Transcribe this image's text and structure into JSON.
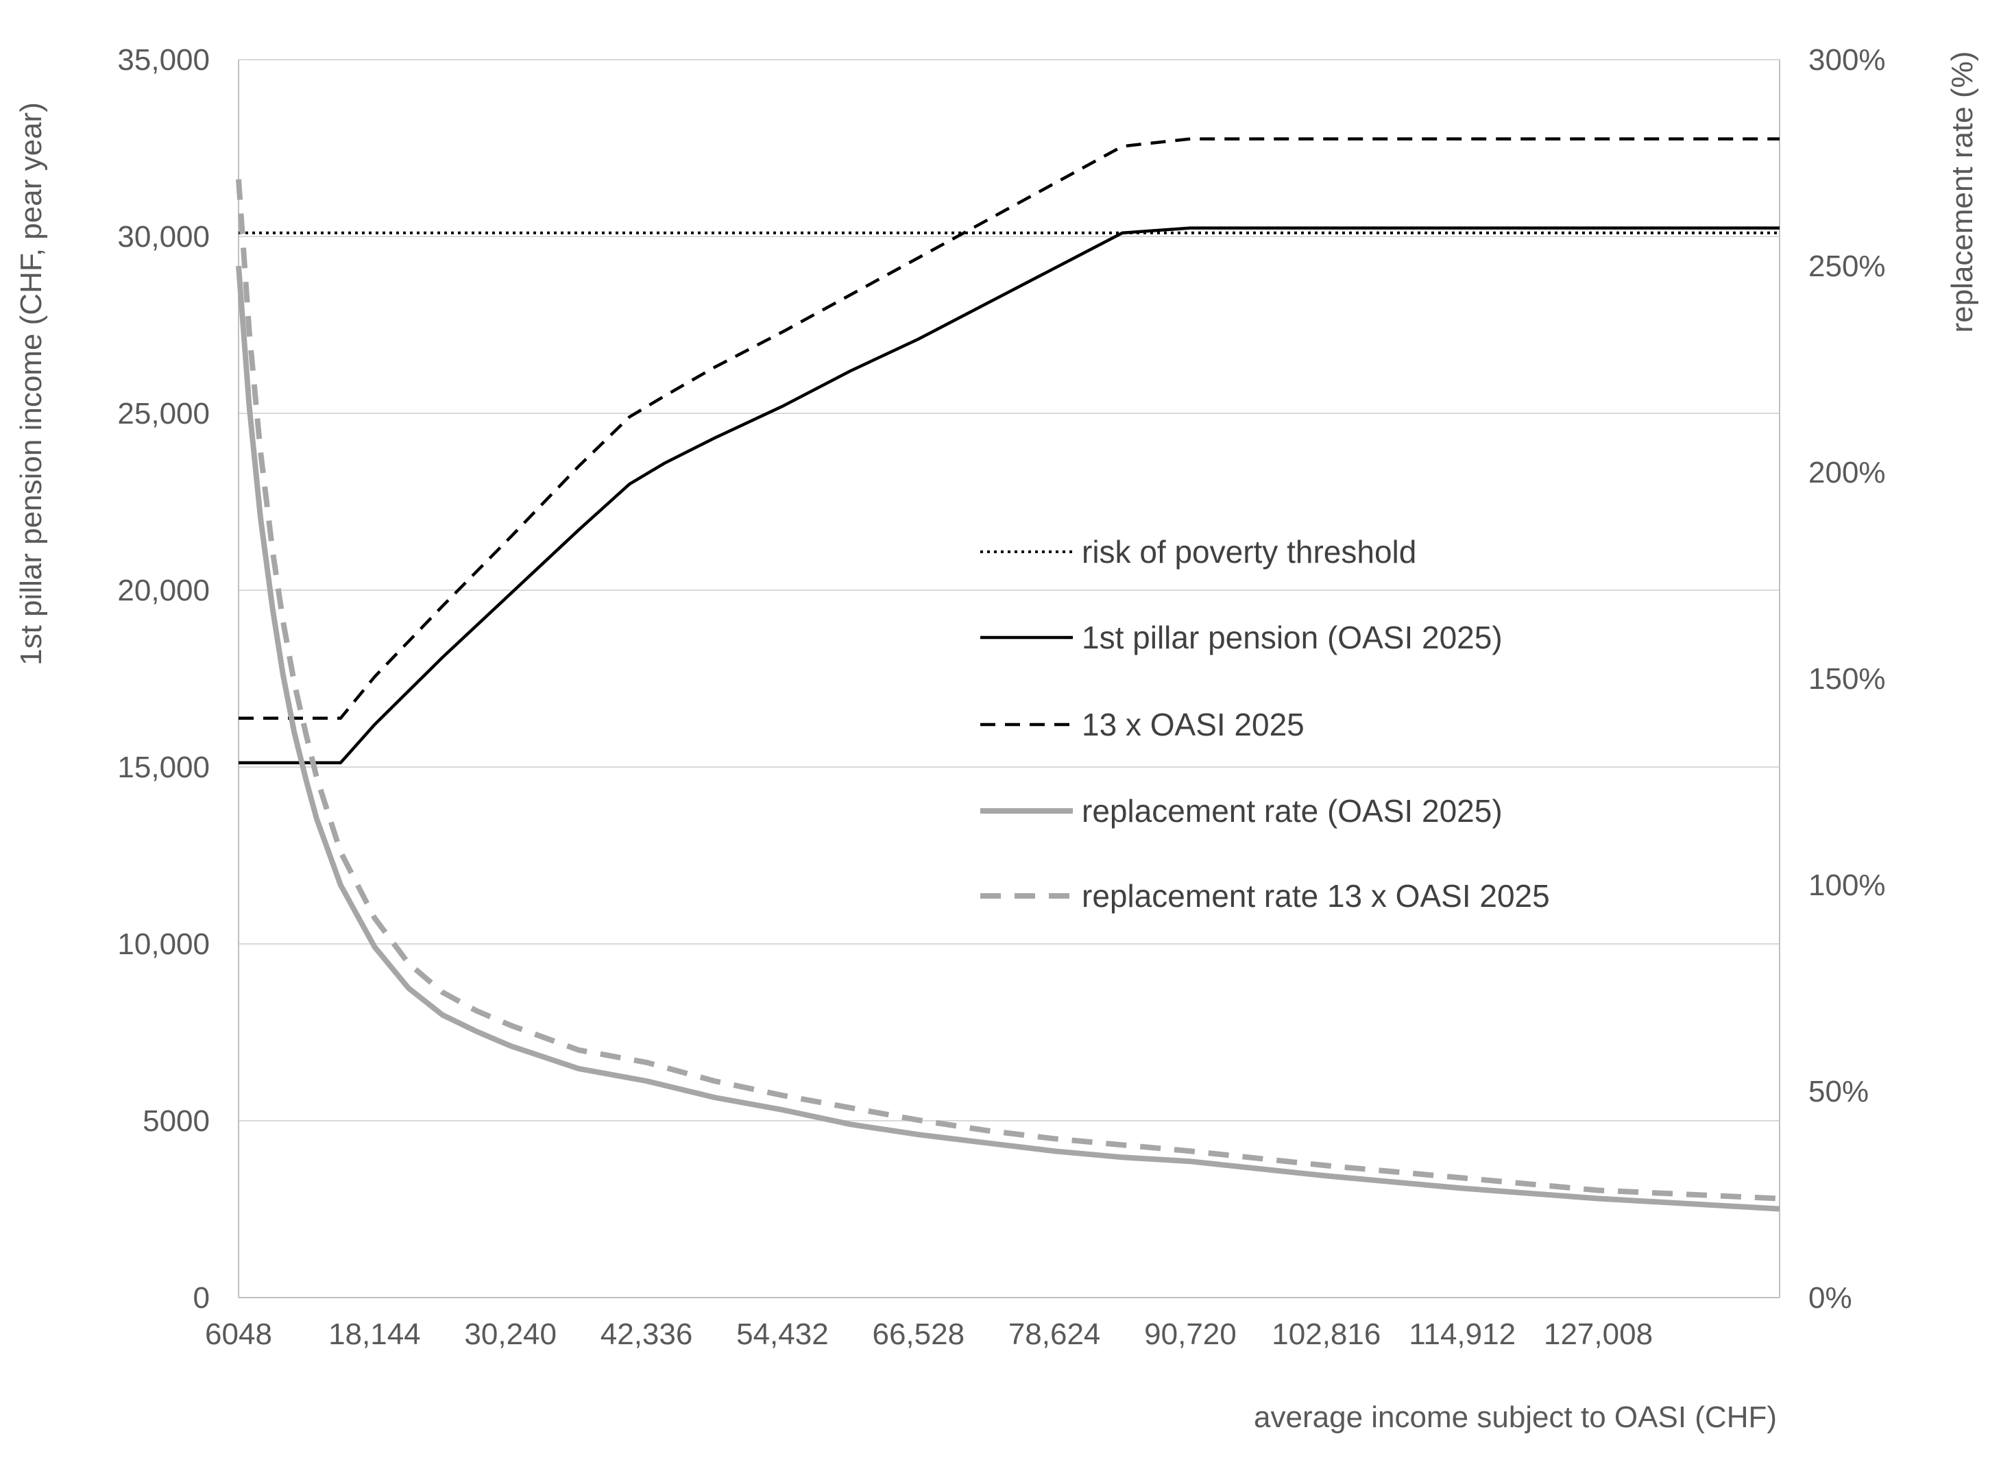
{
  "chart_data": {
    "type": "line",
    "title": "",
    "xlabel": "average income subject to OASI (CHF)",
    "ylabel": "1st pillar pension income (CHF, pear year)",
    "y2label": "replacement rate (%)",
    "xlim": [
      6048,
      143136
    ],
    "ylim": [
      0,
      35000
    ],
    "y2lim": [
      0,
      300
    ],
    "x_ticks": [
      6048,
      18144,
      30240,
      42336,
      54432,
      66528,
      78624,
      90720,
      102816,
      114912,
      127008
    ],
    "x_tick_labels": [
      "6048",
      "18,144",
      "30,240",
      "42,336",
      "54,432",
      "66,528",
      "78,624",
      "90,720",
      "102,816",
      "114,912",
      "127,008"
    ],
    "y_ticks": [
      0,
      5000,
      10000,
      15000,
      20000,
      25000,
      30000,
      35000
    ],
    "y_tick_labels": [
      "0",
      "5000",
      "10,000",
      "15,000",
      "20,000",
      "25,000",
      "30,000",
      "35,000"
    ],
    "y2_ticks": [
      0,
      50,
      100,
      150,
      200,
      250,
      300
    ],
    "y2_tick_labels": [
      "0%",
      "50%",
      "100%",
      "150%",
      "200%",
      "250%",
      "300%"
    ],
    "grid": "horizontal",
    "legend_position": "center-right",
    "series": [
      {
        "name": "risk of poverty threshold",
        "axis": "left",
        "style": "dotted",
        "color": "#000000",
        "x": [
          6048,
          143136
        ],
        "y": [
          30100,
          30100
        ]
      },
      {
        "name": "1st pillar pension (OASI 2025)",
        "axis": "left",
        "style": "solid",
        "color": "#000000",
        "x": [
          6048,
          15120,
          18144,
          24192,
          30240,
          36288,
          40824,
          44000,
          48384,
          54432,
          60480,
          66528,
          72576,
          78624,
          84672,
          90720,
          143136
        ],
        "y": [
          15120,
          15120,
          16200,
          18100,
          19900,
          21700,
          23000,
          23600,
          24300,
          25200,
          26200,
          27100,
          28100,
          29100,
          30100,
          30240,
          30240
        ]
      },
      {
        "name": "13 x OASI 2025",
        "axis": "left",
        "style": "dashed",
        "color": "#000000",
        "x": [
          6048,
          15120,
          18144,
          24192,
          30240,
          36288,
          40824,
          44000,
          48384,
          54432,
          60480,
          66528,
          72576,
          78624,
          84672,
          90720,
          143136
        ],
        "y": [
          16380,
          16380,
          17550,
          19550,
          21500,
          23500,
          24900,
          25500,
          26300,
          27300,
          28350,
          29400,
          30450,
          31500,
          32550,
          32760,
          32760
        ]
      },
      {
        "name": "replacement rate (OASI 2025)",
        "axis": "right",
        "style": "solid",
        "color": "#a6a6a6",
        "x": [
          6048,
          7000,
          8000,
          9072,
          10000,
          11000,
          12096,
          13000,
          15120,
          18144,
          21168,
          24192,
          27216,
          30240,
          36288,
          42336,
          48384,
          54432,
          60480,
          66528,
          72576,
          78624,
          84672,
          90720,
          102816,
          114912,
          127008,
          143136
        ],
        "y": [
          250,
          216,
          189,
          167,
          151,
          137,
          125,
          116,
          100,
          85,
          75,
          68.5,
          64.5,
          61,
          55.5,
          52.5,
          48.5,
          45.5,
          42,
          39.5,
          37.5,
          35.5,
          34,
          33,
          29.5,
          26.5,
          24,
          21.5
        ]
      },
      {
        "name": "replacement rate 13 x OASI 2025",
        "axis": "right",
        "style": "dashed",
        "color": "#a6a6a6",
        "x": [
          6048,
          7000,
          8000,
          9072,
          10000,
          11000,
          12096,
          13000,
          15120,
          18144,
          21168,
          24192,
          27216,
          30240,
          36288,
          42336,
          48384,
          54432,
          60480,
          66528,
          72576,
          78624,
          84672,
          90720,
          102816,
          114912,
          127008,
          143136
        ],
        "y": [
          271,
          234,
          205,
          181,
          164,
          149,
          136,
          126,
          108,
          92,
          81,
          74,
          69.5,
          66,
          60,
          57,
          52.5,
          49,
          46,
          43,
          40.5,
          38.5,
          37,
          35.5,
          32,
          29,
          26,
          24
        ]
      }
    ]
  }
}
